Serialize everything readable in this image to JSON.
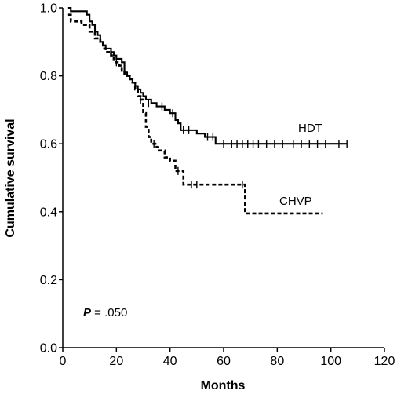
{
  "chart_data": {
    "type": "line",
    "title": "",
    "xlabel": "Months",
    "ylabel": "Cumulative survival",
    "xlim": [
      0,
      120
    ],
    "ylim": [
      0.0,
      1.0
    ],
    "x_ticks": [
      "0",
      "20",
      "40",
      "60",
      "80",
      "100",
      "120"
    ],
    "y_ticks": [
      "0.0",
      "0.2",
      "0.4",
      "0.6",
      "0.8",
      "1.0"
    ],
    "grid": false,
    "annotation": {
      "italic": "P",
      "text": " = .050"
    },
    "series": [
      {
        "name": "HDT",
        "style": "solid",
        "color": "#000000",
        "steps": [
          [
            2,
            1.0
          ],
          [
            3,
            0.99
          ],
          [
            8,
            0.99
          ],
          [
            9,
            0.98
          ],
          [
            10,
            0.96
          ],
          [
            11,
            0.95
          ],
          [
            12,
            0.93
          ],
          [
            13,
            0.92
          ],
          [
            14,
            0.9
          ],
          [
            15,
            0.89
          ],
          [
            16,
            0.88
          ],
          [
            18,
            0.87
          ],
          [
            19,
            0.86
          ],
          [
            20,
            0.85
          ],
          [
            22,
            0.84
          ],
          [
            23,
            0.81
          ],
          [
            24,
            0.8
          ],
          [
            25,
            0.79
          ],
          [
            26,
            0.78
          ],
          [
            27,
            0.77
          ],
          [
            28,
            0.76
          ],
          [
            29,
            0.75
          ],
          [
            30,
            0.74
          ],
          [
            31,
            0.73
          ],
          [
            33,
            0.72
          ],
          [
            35,
            0.71
          ],
          [
            38,
            0.7
          ],
          [
            40,
            0.69
          ],
          [
            42,
            0.67
          ],
          [
            43,
            0.66
          ],
          [
            44,
            0.64
          ],
          [
            50,
            0.63
          ],
          [
            53,
            0.62
          ],
          [
            57,
            0.6
          ],
          [
            106,
            0.6
          ]
        ],
        "censored": [
          [
            32,
            0.72
          ],
          [
            37,
            0.71
          ],
          [
            41,
            0.69
          ],
          [
            45,
            0.64
          ],
          [
            47,
            0.64
          ],
          [
            54,
            0.62
          ],
          [
            56,
            0.62
          ],
          [
            60,
            0.6
          ],
          [
            63,
            0.6
          ],
          [
            65,
            0.6
          ],
          [
            67,
            0.6
          ],
          [
            69,
            0.6
          ],
          [
            71,
            0.6
          ],
          [
            73,
            0.6
          ],
          [
            76,
            0.6
          ],
          [
            79,
            0.6
          ],
          [
            82,
            0.6
          ],
          [
            86,
            0.6
          ],
          [
            89,
            0.6
          ],
          [
            92,
            0.6
          ],
          [
            95,
            0.6
          ],
          [
            98,
            0.6
          ],
          [
            103,
            0.6
          ],
          [
            106,
            0.6
          ]
        ]
      },
      {
        "name": "CHVP",
        "style": "dashed",
        "color": "#000000",
        "steps": [
          [
            2,
            0.98
          ],
          [
            3,
            0.96
          ],
          [
            7,
            0.95
          ],
          [
            10,
            0.93
          ],
          [
            12,
            0.91
          ],
          [
            14,
            0.9
          ],
          [
            15,
            0.88
          ],
          [
            16,
            0.87
          ],
          [
            18,
            0.86
          ],
          [
            19,
            0.84
          ],
          [
            21,
            0.83
          ],
          [
            22,
            0.81
          ],
          [
            23,
            0.8
          ],
          [
            25,
            0.79
          ],
          [
            26,
            0.78
          ],
          [
            27,
            0.76
          ],
          [
            28,
            0.74
          ],
          [
            29,
            0.73
          ],
          [
            30,
            0.69
          ],
          [
            31,
            0.65
          ],
          [
            32,
            0.62
          ],
          [
            33,
            0.6
          ],
          [
            35,
            0.59
          ],
          [
            36,
            0.58
          ],
          [
            38,
            0.56
          ],
          [
            40,
            0.55
          ],
          [
            42,
            0.52
          ],
          [
            45,
            0.48
          ],
          [
            68,
            0.395
          ],
          [
            97,
            0.395
          ]
        ],
        "censored": [
          [
            20,
            0.84
          ],
          [
            29,
            0.73
          ],
          [
            34,
            0.6
          ],
          [
            43,
            0.52
          ],
          [
            48,
            0.48
          ],
          [
            50,
            0.48
          ],
          [
            67,
            0.48
          ]
        ]
      }
    ]
  }
}
